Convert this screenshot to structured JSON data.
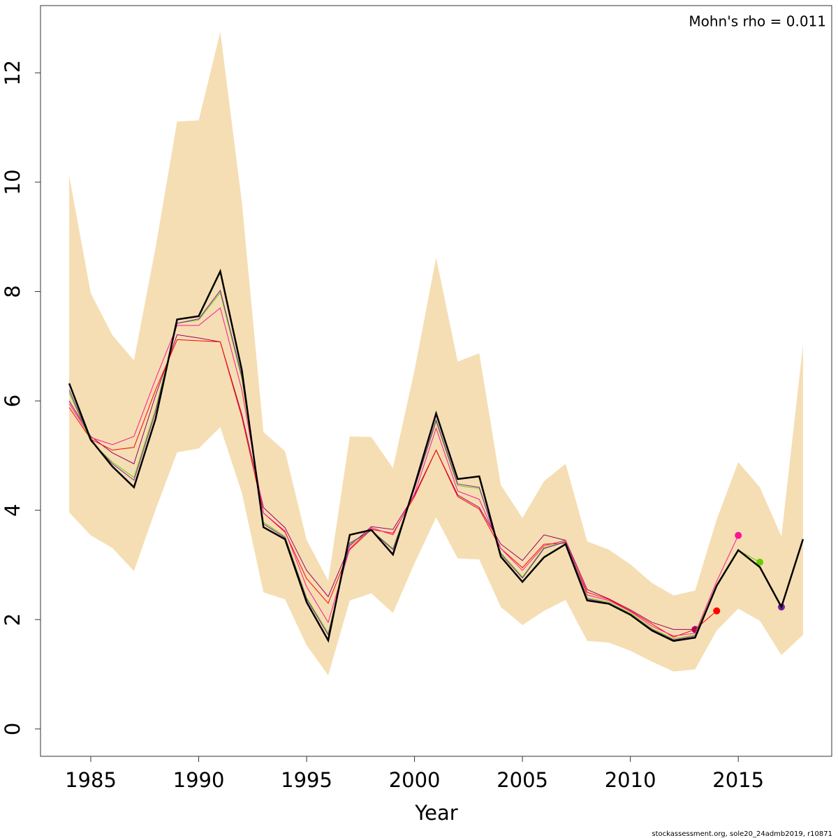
{
  "chart_data": {
    "type": "line",
    "x": [
      1984,
      1985,
      1986,
      1987,
      1988,
      1989,
      1990,
      1991,
      1992,
      1993,
      1994,
      1995,
      1996,
      1997,
      1998,
      1999,
      2000,
      2001,
      2002,
      2003,
      2004,
      2005,
      2006,
      2007,
      2008,
      2009,
      2010,
      2011,
      2012,
      2013,
      2014,
      2015,
      2016,
      2017,
      2018
    ],
    "band": {
      "color": "#f5deb3",
      "lower": [
        3.96,
        3.54,
        3.31,
        2.89,
        4.01,
        5.06,
        5.13,
        5.52,
        4.32,
        2.5,
        2.37,
        1.53,
        0.98,
        2.35,
        2.48,
        2.12,
        3.03,
        3.87,
        3.12,
        3.1,
        2.23,
        1.9,
        2.16,
        2.36,
        1.61,
        1.58,
        1.43,
        1.23,
        1.05,
        1.09,
        1.8,
        2.2,
        1.98,
        1.35,
        1.72
      ],
      "upper": [
        10.11,
        7.97,
        7.2,
        6.74,
        8.8,
        11.11,
        11.13,
        12.75,
        9.63,
        5.43,
        5.08,
        3.46,
        2.71,
        5.35,
        5.34,
        4.77,
        6.56,
        8.62,
        6.72,
        6.87,
        4.46,
        3.86,
        4.53,
        4.85,
        3.43,
        3.28,
        3.01,
        2.67,
        2.44,
        2.53,
        3.83,
        4.88,
        4.42,
        3.52,
        7.03
      ]
    },
    "series": [
      {
        "color": "#990066",
        "values": [
          6.0,
          5.35,
          5.05,
          4.85,
          6.1,
          7.21,
          7.15,
          7.08,
          5.75,
          4.05,
          3.68,
          2.9,
          2.42,
          3.35,
          3.7,
          3.65,
          4.28,
          5.1,
          4.28,
          4.05,
          3.38,
          3.08,
          3.55,
          3.45,
          2.55,
          2.38,
          2.18,
          1.95,
          1.82,
          1.82,
          null,
          null,
          null,
          null,
          null
        ]
      },
      {
        "color": "#ff0000",
        "values": [
          5.88,
          5.3,
          5.1,
          5.15,
          6.2,
          7.12,
          7.1,
          7.08,
          5.7,
          3.95,
          3.6,
          2.75,
          2.3,
          3.28,
          3.65,
          3.58,
          4.25,
          5.1,
          4.25,
          4.02,
          3.3,
          2.95,
          3.38,
          3.4,
          2.5,
          2.37,
          2.16,
          1.92,
          1.68,
          1.82,
          2.16,
          null,
          null,
          null,
          null
        ]
      },
      {
        "color": "#ff1493",
        "values": [
          5.95,
          5.33,
          5.2,
          5.35,
          6.4,
          7.38,
          7.38,
          7.7,
          6.2,
          3.95,
          3.62,
          2.6,
          1.95,
          3.3,
          3.68,
          3.55,
          4.3,
          5.5,
          4.35,
          4.2,
          3.3,
          2.9,
          3.35,
          3.45,
          2.45,
          2.35,
          2.15,
          1.88,
          1.7,
          1.75,
          2.7,
          3.54,
          null,
          null,
          null
        ]
      },
      {
        "color": "#66cc00",
        "values": [
          6.15,
          5.26,
          4.88,
          4.6,
          5.85,
          7.42,
          7.48,
          7.98,
          6.4,
          3.78,
          3.52,
          2.4,
          1.75,
          3.38,
          3.63,
          3.3,
          4.4,
          5.62,
          4.45,
          4.4,
          3.22,
          2.78,
          3.32,
          3.43,
          2.4,
          2.32,
          2.12,
          1.84,
          1.65,
          1.72,
          2.63,
          3.27,
          3.05,
          null,
          null
        ]
      },
      {
        "color": "#7b1fa2",
        "values": [
          6.2,
          5.27,
          4.85,
          4.55,
          5.8,
          7.42,
          7.5,
          8.02,
          6.45,
          3.75,
          3.5,
          2.38,
          1.72,
          3.4,
          3.63,
          3.28,
          4.4,
          5.65,
          4.48,
          4.42,
          3.2,
          2.76,
          3.3,
          3.42,
          2.38,
          2.3,
          2.1,
          1.82,
          1.63,
          1.7,
          2.62,
          3.28,
          2.97,
          2.23,
          null
        ]
      },
      {
        "color": "#000000",
        "values": [
          6.32,
          5.29,
          4.8,
          4.42,
          5.67,
          7.49,
          7.55,
          8.37,
          6.56,
          3.69,
          3.47,
          2.32,
          1.62,
          3.55,
          3.64,
          3.19,
          4.45,
          5.77,
          4.57,
          4.62,
          3.15,
          2.69,
          3.14,
          3.38,
          2.35,
          2.29,
          2.09,
          1.8,
          1.61,
          1.67,
          2.62,
          3.27,
          2.96,
          2.23,
          3.47
        ]
      }
    ],
    "xlabel": "Year",
    "annotation": "Mohn's rho = 0.011",
    "footer": "stockassessment.org, sole20_24admb2019, r10871",
    "xlim": [
      1982.67,
      2019.33
    ],
    "ylim": [
      -0.5,
      13.23
    ],
    "xticks": [
      1985,
      1990,
      1995,
      2000,
      2005,
      2010,
      2015
    ],
    "yticks": [
      0,
      2,
      4,
      6,
      8,
      10,
      12
    ]
  }
}
